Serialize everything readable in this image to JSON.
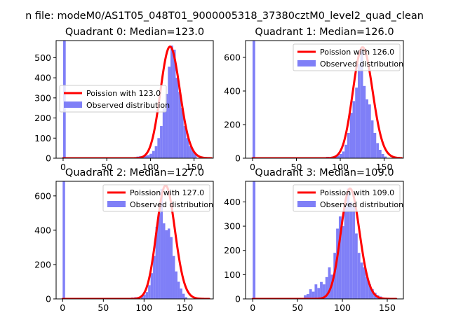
{
  "figure": {
    "suptitle": "n file: modeM0/AS1T05_048T01_9000005318_37380cztM0_level2_quad_clean"
  },
  "colors": {
    "fit_line": "#ff0000",
    "hist_fill": "#7f7ff7"
  },
  "chart_data": [
    {
      "type": "bar",
      "title": "Quadrant 0: Median=123.0",
      "median": 123.0,
      "xlim": [
        -8,
        172
      ],
      "ylim": [
        0,
        585
      ],
      "xticks": [
        0,
        50,
        100,
        150
      ],
      "yticks": [
        0,
        100,
        200,
        300,
        400,
        500
      ],
      "legend": {
        "position": "center-left",
        "line_label": "Poission with 123.0",
        "hist_label": "Observed distribution"
      },
      "bin_width": 3,
      "hist_x": [
        0,
        84,
        87,
        90,
        93,
        96,
        99,
        102,
        105,
        108,
        111,
        114,
        117,
        120,
        123,
        126,
        129,
        132,
        135,
        138,
        141,
        144,
        147,
        150
      ],
      "hist_y": [
        585,
        8,
        10,
        6,
        12,
        15,
        22,
        36,
        60,
        100,
        160,
        250,
        320,
        455,
        560,
        540,
        400,
        330,
        250,
        160,
        100,
        60,
        40,
        20
      ],
      "poisson_lambda": 123.0,
      "poisson_peak": 555,
      "poisson_range": [
        0,
        170
      ]
    },
    {
      "type": "bar",
      "title": "Quadrant 1: Median=126.0",
      "median": 126.0,
      "xlim": [
        -8,
        172
      ],
      "ylim": [
        0,
        700
      ],
      "xticks": [
        0,
        50,
        100,
        150
      ],
      "yticks": [
        0,
        200,
        400,
        600
      ],
      "legend": {
        "position": "top-right",
        "line_label": "Poission with 126.0",
        "hist_label": "Observed distribution"
      },
      "bin_width": 3,
      "hist_x": [
        0,
        84,
        87,
        90,
        93,
        96,
        99,
        102,
        105,
        108,
        111,
        114,
        117,
        120,
        123,
        126,
        129,
        132,
        135,
        138,
        141,
        144,
        147,
        150
      ],
      "hist_y": [
        700,
        8,
        6,
        10,
        12,
        15,
        25,
        40,
        80,
        150,
        270,
        340,
        420,
        560,
        650,
        430,
        350,
        320,
        225,
        150,
        90,
        50,
        25,
        10
      ],
      "poisson_lambda": 126.0,
      "poisson_peak": 660,
      "poisson_range": [
        0,
        170
      ]
    },
    {
      "type": "bar",
      "title": "Quadrant 2: Median=127.0",
      "median": 127.0,
      "xlim": [
        -8,
        185
      ],
      "ylim": [
        0,
        685
      ],
      "xticks": [
        0,
        50,
        100,
        150
      ],
      "yticks": [
        0,
        200,
        400,
        600
      ],
      "legend": {
        "position": "top-right",
        "line_label": "Poission with 127.0",
        "hist_label": "Observed distribution"
      },
      "bin_width": 3,
      "hist_x": [
        0,
        80,
        84,
        88,
        92,
        96,
        99,
        102,
        105,
        108,
        111,
        114,
        117,
        120,
        123,
        126,
        129,
        132,
        135,
        138,
        141,
        144,
        147,
        150
      ],
      "hist_y": [
        685,
        6,
        8,
        10,
        12,
        15,
        25,
        40,
        80,
        150,
        250,
        420,
        500,
        640,
        440,
        400,
        410,
        360,
        250,
        160,
        100,
        60,
        30,
        10
      ],
      "poisson_lambda": 127.0,
      "poisson_peak": 660,
      "poisson_range": [
        0,
        180
      ]
    },
    {
      "type": "bar",
      "title": "Quadrant 3: Median=109.0",
      "median": 109.0,
      "xlim": [
        -8,
        168
      ],
      "ylim": [
        0,
        485
      ],
      "xticks": [
        0,
        50,
        100,
        150
      ],
      "yticks": [
        0,
        100,
        200,
        300,
        400
      ],
      "legend": {
        "position": "top-right",
        "line_label": "Poission with 109.0",
        "hist_label": "Observed distribution"
      },
      "bin_width": 3,
      "hist_x": [
        0,
        57,
        60,
        63,
        66,
        69,
        72,
        75,
        78,
        81,
        84,
        87,
        90,
        93,
        96,
        99,
        102,
        105,
        108,
        111,
        114,
        117,
        120,
        123,
        126,
        129,
        132,
        135,
        138,
        141
      ],
      "hist_y": [
        485,
        15,
        20,
        40,
        30,
        60,
        45,
        70,
        60,
        90,
        130,
        100,
        190,
        290,
        340,
        300,
        380,
        455,
        400,
        380,
        270,
        190,
        150,
        130,
        90,
        60,
        40,
        25,
        15,
        10
      ],
      "poisson_lambda": 109.0,
      "poisson_peak": 455,
      "poisson_range": [
        0,
        160
      ]
    }
  ]
}
